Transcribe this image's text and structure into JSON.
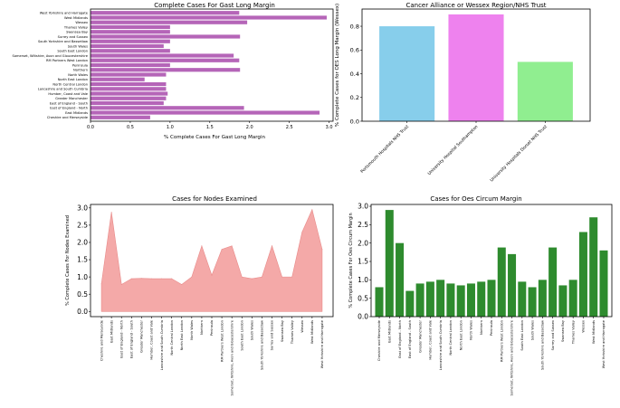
{
  "colors": {
    "barh": "#b565b8",
    "wessex": [
      "#87ceeb",
      "#ee82ee",
      "#90ee90"
    ],
    "area": "#f4a9a8",
    "areaEdge": "#e88a89",
    "green": "#2e8b2e"
  },
  "chart_data": [
    {
      "type": "bar",
      "orientation": "horizontal",
      "title": "Complete Cases For Gast Long Margin",
      "xlabel": "% Complete Cases For Gast Long Margin",
      "ylabel": "",
      "xlim": [
        0,
        3.05
      ],
      "xticks": [
        "0.0",
        "0.5",
        "1.0",
        "1.5",
        "2.0",
        "2.5",
        "3.0"
      ],
      "categories": [
        "West Yorkshire and Harrogate",
        "West Midlands",
        "Wessex",
        "Thames Valley",
        "Swansea Bay",
        "Surrey and Sussex",
        "South Yorkshire and Bassetlaw",
        "South Wales",
        "South East London",
        "Somerset, Wiltshire, Avon and Gloucestershire",
        "RM Partners West London",
        "Peninsula",
        "Northern",
        "North Wales",
        "North East London",
        "North Central London",
        "Lancashire and South Cumbria",
        "Humber, Coast and Vale",
        "Greater Manchester",
        "East of England - South",
        "East of England - North",
        "East Midlands",
        "Cheshire and Merseyside"
      ],
      "values": [
        1.87,
        2.97,
        1.97,
        1.0,
        1.0,
        1.88,
        1.0,
        0.92,
        1.0,
        1.8,
        1.87,
        1.0,
        1.88,
        0.95,
        0.68,
        0.95,
        0.95,
        0.97,
        0.95,
        0.92,
        1.93,
        2.88,
        0.75
      ]
    },
    {
      "type": "bar",
      "title": "Cancer Alliance or Wessex Region/NHS Trust",
      "xlabel": "",
      "ylabel": "% Complete Cases for OES Long Margin (Wessex)",
      "ylim": [
        0,
        0.945
      ],
      "yticks": [
        "0.0",
        "0.2",
        "0.4",
        "0.6",
        "0.8"
      ],
      "categories": [
        "Portsmouth Hospitals NHS Trust",
        "University Hospital Southampton",
        "University Hospitals Dorset NHS Trust"
      ],
      "values": [
        0.8,
        0.9,
        0.5
      ]
    },
    {
      "type": "area",
      "title": "Cases for Nodes Examined",
      "xlabel": "",
      "ylabel": "% Complete Cases For Nodes Examined",
      "ylim": [
        -0.15,
        3.1
      ],
      "yticks": [
        "0.0",
        "0.5",
        "1.0",
        "1.5",
        "2.0",
        "2.5",
        "3.0"
      ],
      "categories": [
        "Cheshire and Merseyside",
        "East Midlands",
        "East of England - North",
        "East of England - South",
        "Greater Manchester",
        "Humber, Coast and Vale",
        "Lancashire and South Cumbria",
        "North Central London",
        "North East London",
        "North Wales",
        "Northern",
        "Peninsula",
        "RM Partners West London",
        "Somerset, Wiltshire, Avon and Gloucestershire",
        "South East London",
        "South Wales",
        "South Yorkshire and Bassetlaw",
        "Surrey and Sussex",
        "Swansea Bay",
        "Thames Valley",
        "Wessex",
        "West Midlands",
        "West Yorkshire and Harrogate"
      ],
      "values": [
        0.8,
        2.88,
        0.78,
        0.95,
        0.96,
        0.95,
        0.95,
        0.95,
        0.78,
        1.0,
        1.9,
        1.05,
        1.8,
        1.9,
        1.0,
        0.95,
        1.0,
        1.9,
        1.0,
        1.0,
        2.3,
        2.95,
        1.8
      ]
    },
    {
      "type": "bar",
      "title": "Cases for Oes Circum Margin",
      "xlabel": "",
      "ylabel": "% Complete Cases For Oes Circum Margin",
      "ylim": [
        0,
        3.05
      ],
      "yticks": [
        "0.0",
        "0.5",
        "1.0",
        "1.5",
        "2.0",
        "2.5",
        "3.0"
      ],
      "categories": [
        "Cheshire and Merseyside",
        "East Midlands",
        "East of England - North",
        "East of England - South",
        "Greater Manchester",
        "Humber, Coast and Vale",
        "Lancashire and South Cumbria",
        "North Central London",
        "North East London",
        "North Wales",
        "Northern",
        "Peninsula",
        "RM Partners West London",
        "Somerset, Wiltshire, Avon and Gloucestershire",
        "South East London",
        "South Wales",
        "South Yorkshire and Bassetlaw",
        "Surrey and Sussex",
        "Swansea Bay",
        "Thames Valley",
        "Wessex",
        "West Midlands",
        "West Yorkshire and Harrogate"
      ],
      "values": [
        0.8,
        2.9,
        2.0,
        0.7,
        0.9,
        0.95,
        1.0,
        0.9,
        0.85,
        0.9,
        0.95,
        1.0,
        1.88,
        1.7,
        0.95,
        0.8,
        1.0,
        1.88,
        0.85,
        1.0,
        2.3,
        2.7,
        1.8
      ]
    }
  ]
}
